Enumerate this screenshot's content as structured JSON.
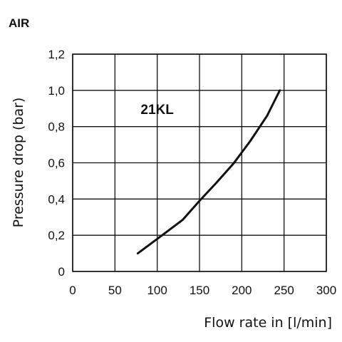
{
  "chart_data": {
    "type": "line",
    "title": "AIR",
    "xlabel": "Flow rate in [l/min]",
    "ylabel": "Pressure drop (bar)",
    "xlim": [
      0,
      300
    ],
    "ylim": [
      0,
      1.2
    ],
    "x_ticks": [
      0,
      50,
      100,
      150,
      200,
      250,
      300
    ],
    "y_ticks": [
      0,
      0.2,
      0.4,
      0.6,
      0.8,
      1.0,
      1.2
    ],
    "x_tick_labels": [
      "0",
      "50",
      "100",
      "150",
      "200",
      "250",
      "300"
    ],
    "y_tick_labels": [
      "0",
      "0,2",
      "0,4",
      "0,6",
      "0,8",
      "1,0",
      "1,2"
    ],
    "grid": true,
    "series": [
      {
        "name": "21KL",
        "x": [
          77,
          100,
          130,
          150,
          170,
          190,
          210,
          230,
          245
        ],
        "y": [
          0.1,
          0.18,
          0.285,
          0.39,
          0.49,
          0.595,
          0.72,
          0.86,
          1.0
        ]
      }
    ]
  }
}
